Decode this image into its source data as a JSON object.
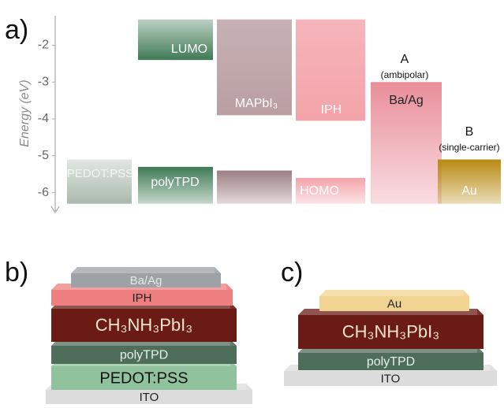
{
  "chart_data": {
    "type": "energy-levels",
    "panel_label": "a)",
    "y_label": "Energy (eV)",
    "ylim": [
      -6.5,
      -1.2
    ],
    "yticks": [
      -2,
      -3,
      -4,
      -5,
      -6
    ],
    "boxes": [
      {
        "label": "PEDOT:PSS",
        "color": "#a9b9ad",
        "values": [
          -5.1,
          -6.3
        ]
      },
      {
        "label": "LUMO",
        "color": "#3f7a55",
        "values": [
          -1.3,
          -2.4
        ]
      },
      {
        "label": "polyTPD",
        "color": "#3f7a55",
        "values": [
          -5.3,
          -6.3
        ]
      },
      {
        "label": "MAPbI₃",
        "color": "#b99ea2",
        "values": [
          -1.3,
          -3.9
        ]
      },
      {
        "label": null,
        "color": "#9c7f84",
        "values": [
          -5.4,
          -6.3
        ]
      },
      {
        "label": "IPH",
        "color": "#f3a3aa",
        "values": [
          -1.3,
          -4.05
        ]
      },
      {
        "label": "HOMO",
        "color": "#f3a3aa",
        "values": [
          -5.6,
          -6.3
        ]
      },
      {
        "label": "Ba/Ag",
        "color": "#e98e9a",
        "values": [
          -3.0,
          -6.3
        ]
      },
      {
        "label": "Au",
        "color": "#b88a10",
        "values": [
          -5.1,
          -6.3
        ]
      }
    ],
    "annotations": [
      "A",
      "(ambipolar)",
      "B",
      "(single-carrier)"
    ]
  },
  "devices": [
    {
      "panel_label": "b)",
      "layers": [
        {
          "label": "Ba/Ag",
          "color": "#9ea2a6"
        },
        {
          "label": "IPH",
          "color": "#ee7f80"
        },
        {
          "label": "CH₃NH₃PbI₃",
          "color": "#6a1b14"
        },
        {
          "label": "polyTPD",
          "color": "#4f6d5b"
        },
        {
          "label": "PEDOT:PSS",
          "color": "#8fc29d"
        },
        {
          "label": "ITO",
          "color": "#dcdcdc"
        }
      ]
    },
    {
      "panel_label": "c)",
      "layers": [
        {
          "label": "Au",
          "color": "#f1d492"
        },
        {
          "label": "CH₃NH₃PbI₃",
          "color": "#6a1b14"
        },
        {
          "label": "polyTPD",
          "color": "#4f6d5b"
        },
        {
          "label": "ITO",
          "color": "#dcdcdc"
        }
      ]
    }
  ]
}
